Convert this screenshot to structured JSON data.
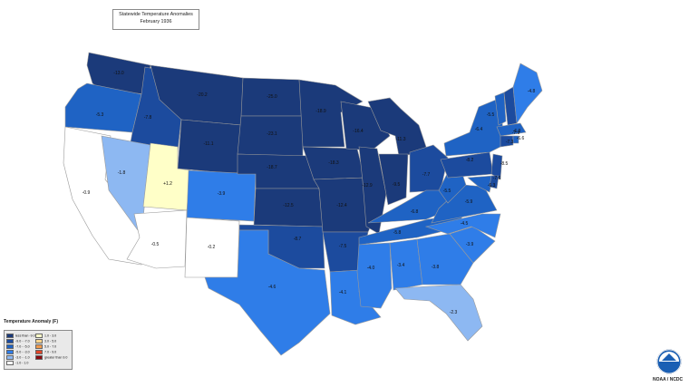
{
  "header": {
    "title_line1": "Statewide Temperature Anomalies",
    "title_line2": "February 1936"
  },
  "legend": {
    "title": "Temperature Anomaly (F)",
    "items": [
      {
        "label": "less than -9.0",
        "color": "#1b3a7a"
      },
      {
        "label": "-9.0 - -7.0",
        "color": "#1c4b9e"
      },
      {
        "label": "-7.0 - -5.0",
        "color": "#1f63c4"
      },
      {
        "label": "-5.0 - -3.0",
        "color": "#2f7de8"
      },
      {
        "label": "-3.0 - -1.0",
        "color": "#8db8f2"
      },
      {
        "label": "-1.0 - 1.0",
        "color": "#ffffff"
      },
      {
        "label": "1.0 - 3.0",
        "color": "#ffffc8"
      },
      {
        "label": "3.0 - 5.0",
        "color": "#f9d38c"
      },
      {
        "label": "5.0 - 7.0",
        "color": "#f29a4c"
      },
      {
        "label": "7.0 - 9.0",
        "color": "#e0472a"
      },
      {
        "label": "greater than 9.0",
        "color": "#8b0a10"
      }
    ]
  },
  "states": [
    {
      "id": "WA",
      "value": "-13.0"
    },
    {
      "id": "OR",
      "value": "-5.3"
    },
    {
      "id": "CA",
      "value": "-0.9"
    },
    {
      "id": "ID",
      "value": "-7.8"
    },
    {
      "id": "NV",
      "value": "-1.8"
    },
    {
      "id": "UT",
      "value": "+1.2"
    },
    {
      "id": "AZ",
      "value": "-0.5"
    },
    {
      "id": "MT",
      "value": "-20.2"
    },
    {
      "id": "WY",
      "value": "-11.1"
    },
    {
      "id": "CO",
      "value": "-3.9"
    },
    {
      "id": "NM",
      "value": "-0.2"
    },
    {
      "id": "ND",
      "value": "-25.0"
    },
    {
      "id": "SD",
      "value": "-23.1"
    },
    {
      "id": "NE",
      "value": "-18.7"
    },
    {
      "id": "KS",
      "value": "-12.5"
    },
    {
      "id": "OK",
      "value": "-8.7"
    },
    {
      "id": "TX",
      "value": "-4.6"
    },
    {
      "id": "MN",
      "value": "-18.9"
    },
    {
      "id": "IA",
      "value": "-18.3"
    },
    {
      "id": "MO",
      "value": "-12.4"
    },
    {
      "id": "AR",
      "value": "-7.5"
    },
    {
      "id": "LA",
      "value": "-4.1"
    },
    {
      "id": "WI",
      "value": "-16.4"
    },
    {
      "id": "IL",
      "value": "-12.9"
    },
    {
      "id": "MI",
      "value": "-11.3"
    },
    {
      "id": "IN",
      "value": "-9.5"
    },
    {
      "id": "OH",
      "value": "-7.7"
    },
    {
      "id": "KY",
      "value": "-6.8"
    },
    {
      "id": "TN",
      "value": "-5.8"
    },
    {
      "id": "MS",
      "value": "-4.0"
    },
    {
      "id": "AL",
      "value": "-3.4"
    },
    {
      "id": "GA",
      "value": "-3.8"
    },
    {
      "id": "FL",
      "value": "-2.3"
    },
    {
      "id": "SC",
      "value": "-3.9"
    },
    {
      "id": "NC",
      "value": "-4.5"
    },
    {
      "id": "VA",
      "value": "-5.9"
    },
    {
      "id": "WV",
      "value": "-5.5"
    },
    {
      "id": "PA",
      "value": "-8.2"
    },
    {
      "id": "NY",
      "value": "-6.4"
    },
    {
      "id": "VT",
      "value": "-5.5"
    },
    {
      "id": "NH",
      "value": "-7.9"
    },
    {
      "id": "ME",
      "value": "-4.8"
    },
    {
      "id": "MA",
      "value": "-6.9"
    },
    {
      "id": "CT",
      "value": "-7.3"
    },
    {
      "id": "RI",
      "value": "-6.6"
    },
    {
      "id": "NJ",
      "value": "-8.5"
    },
    {
      "id": "MD",
      "value": "-6.3"
    },
    {
      "id": "DE",
      "value": "-7.6"
    }
  ],
  "footer": {
    "credit": "NOAA / NCDC",
    "logo_icon": "noaa-logo-icon"
  }
}
